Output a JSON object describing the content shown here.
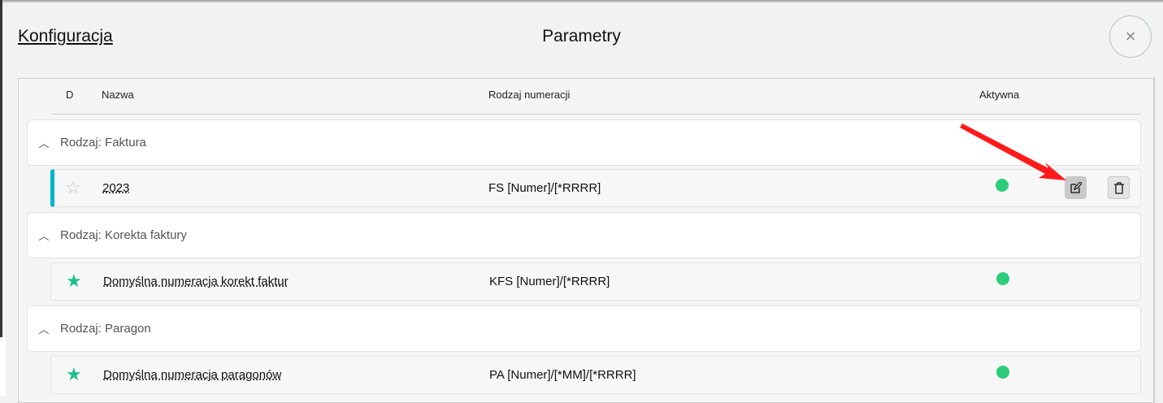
{
  "header": {
    "breadcrumb": "Konfiguracja",
    "title": "Parametry",
    "close_label": "×"
  },
  "table": {
    "columns": {
      "d": "D",
      "name": "Nazwa",
      "numbering": "Rodzaj numeracji",
      "active": "Aktywna"
    },
    "groups": [
      {
        "label": "Rodzaj: Faktura",
        "items": [
          {
            "name": "2023",
            "numbering": "FS [Numer]/[*RRRR]",
            "default": false,
            "active": true,
            "selected": true
          }
        ]
      },
      {
        "label": "Rodzaj: Korekta faktury",
        "items": [
          {
            "name": "Domyślna numeracja korekt faktur",
            "numbering": "KFS [Numer]/[*RRRR]",
            "default": true,
            "active": true
          }
        ]
      },
      {
        "label": "Rodzaj: Paragon",
        "items": [
          {
            "name": "Domyślna numeracja paragonów",
            "numbering": "PA [Numer]/[*MM]/[*RRRR]",
            "default": true,
            "active": true
          }
        ]
      }
    ]
  },
  "colors": {
    "accent": "#00b5cc",
    "active_dot": "#2ecc7a",
    "default_star": "#1fbf8f",
    "annotation_arrow": "#ff0000"
  }
}
